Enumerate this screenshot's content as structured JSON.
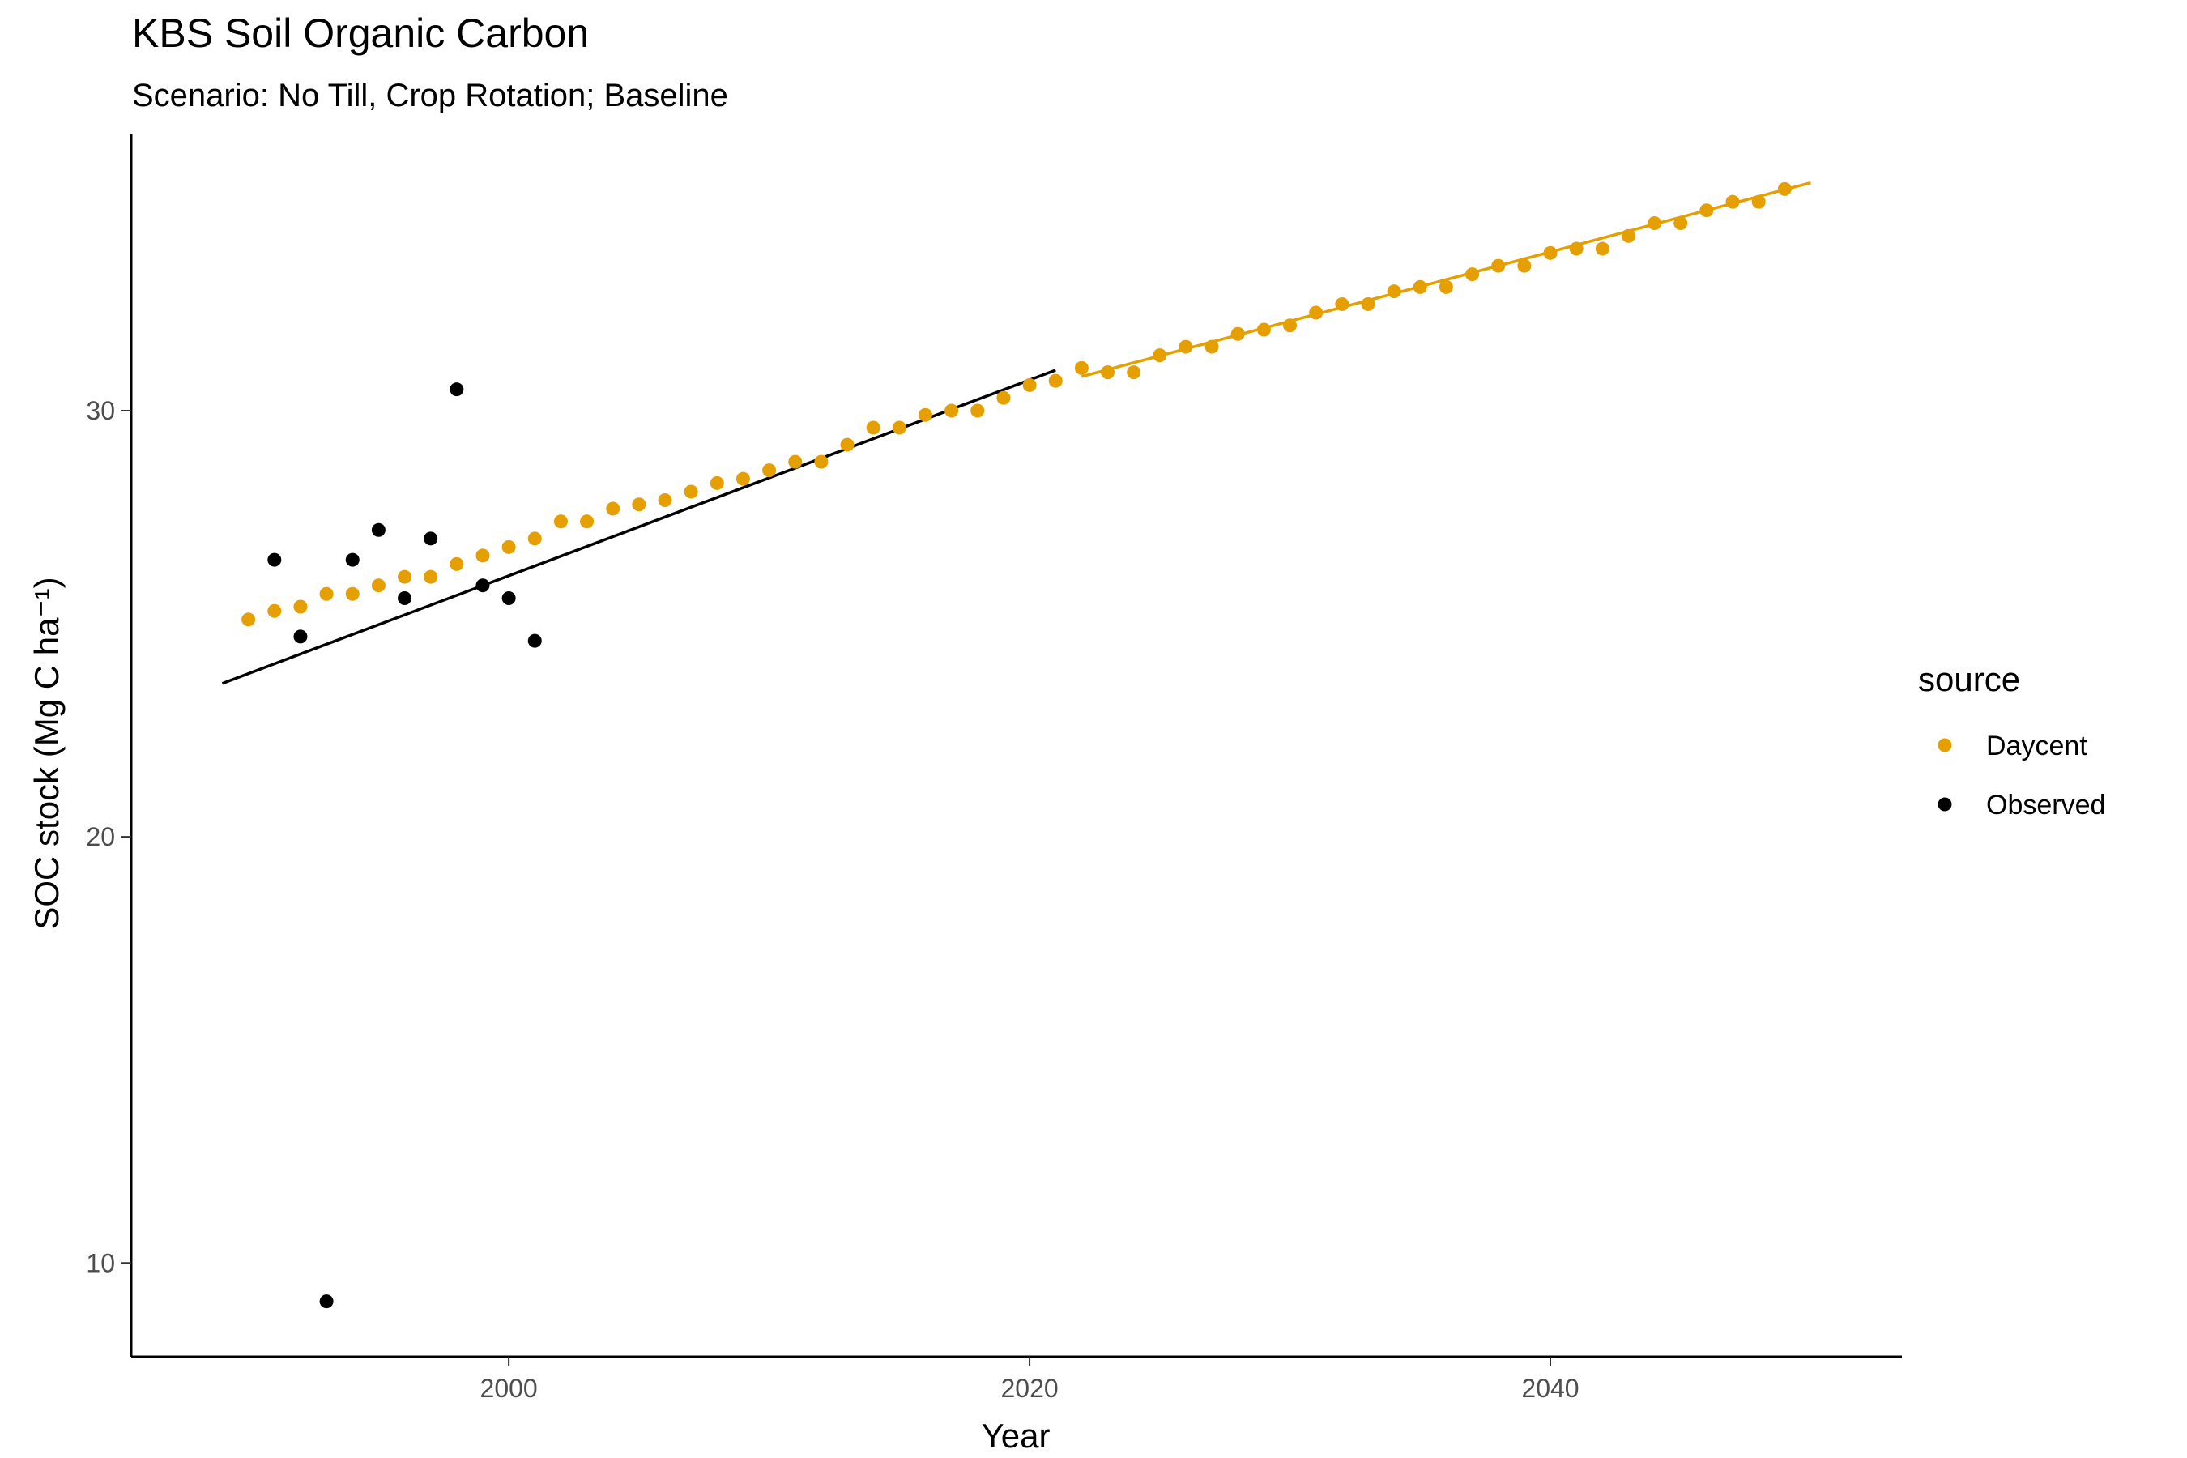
{
  "chart_data": {
    "type": "scatter",
    "title": "KBS Soil Organic Carbon",
    "subtitle": "Scenario: No Till, Crop Rotation; Baseline",
    "xlabel": "Year",
    "ylabel": "SOC stock (Mg C ha⁻¹)",
    "xlim": [
      1985.5,
      2053.5
    ],
    "ylim": [
      7.8,
      36.5
    ],
    "xticks": [
      2000,
      2020,
      2040
    ],
    "yticks": [
      10,
      20,
      30
    ],
    "grid": false,
    "legend": {
      "title": "source",
      "position": "right"
    },
    "series": [
      {
        "name": "Daycent",
        "color": "#E69F00",
        "x": [
          1990,
          1991,
          1992,
          1993,
          1994,
          1995,
          1996,
          1997,
          1998,
          1999,
          2000,
          2001,
          2002,
          2003,
          2004,
          2005,
          2006,
          2007,
          2008,
          2009,
          2010,
          2011,
          2012,
          2013,
          2014,
          2015,
          2016,
          2017,
          2018,
          2019,
          2020,
          2021,
          2022,
          2023,
          2024,
          2025,
          2026,
          2027,
          2028,
          2029,
          2030,
          2031,
          2032,
          2033,
          2034,
          2035,
          2036,
          2037,
          2038,
          2039,
          2040,
          2041,
          2042,
          2043,
          2044,
          2045,
          2046,
          2047,
          2048,
          2049
        ],
        "y": [
          25.1,
          25.3,
          25.4,
          25.7,
          25.7,
          25.9,
          26.1,
          26.1,
          26.4,
          26.6,
          26.8,
          27.0,
          27.4,
          27.4,
          27.7,
          27.8,
          27.9,
          28.1,
          28.3,
          28.4,
          28.6,
          28.8,
          28.8,
          29.2,
          29.6,
          29.6,
          29.9,
          30.0,
          30.0,
          30.3,
          30.6,
          30.7,
          31.0,
          30.9,
          30.9,
          31.3,
          31.5,
          31.5,
          31.8,
          31.9,
          32.0,
          32.3,
          32.5,
          32.5,
          32.8,
          32.9,
          32.9,
          33.2,
          33.4,
          33.4,
          33.7,
          33.8,
          33.8,
          34.1,
          34.4,
          34.4,
          34.7,
          34.9,
          34.9,
          35.2
        ]
      },
      {
        "name": "Observed",
        "color": "#000000",
        "x": [
          1991,
          1992,
          1993,
          1994,
          1995,
          1996,
          1997,
          1998,
          1999,
          2000,
          2001
        ],
        "y": [
          26.5,
          24.7,
          9.1,
          26.5,
          27.2,
          25.6,
          27.0,
          30.5,
          25.9,
          25.6,
          24.6
        ]
      }
    ],
    "trend_lines": [
      {
        "series": "Observed",
        "color": "#000000",
        "x": [
          1989,
          2021
        ],
        "y": [
          23.6,
          30.95
        ]
      },
      {
        "series": "Daycent",
        "color": "#E69F00",
        "x": [
          2022,
          2050
        ],
        "y": [
          30.8,
          35.35
        ]
      }
    ]
  }
}
